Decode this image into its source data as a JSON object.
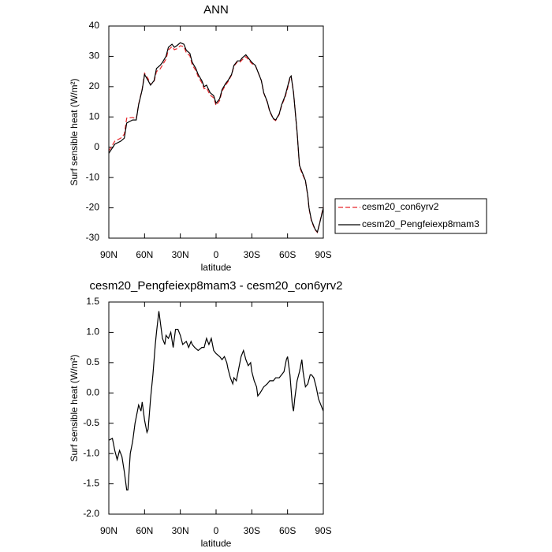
{
  "chart_data": [
    {
      "type": "line",
      "title": "ANN",
      "x_label": "latitude",
      "y_label": "Surf sensible heat (W/m²)",
      "x": [
        90,
        85,
        80,
        77,
        75,
        70,
        67,
        65,
        62,
        60,
        57,
        55,
        52,
        50,
        47,
        45,
        42,
        40,
        37,
        35,
        33,
        30,
        27,
        25,
        22,
        20,
        17,
        15,
        12,
        10,
        8,
        5,
        2,
        0,
        -3,
        -5,
        -8,
        -10,
        -13,
        -15,
        -18,
        -20,
        -22,
        -25,
        -28,
        -30,
        -33,
        -35,
        -38,
        -40,
        -43,
        -45,
        -48,
        -50,
        -53,
        -55,
        -58,
        -60,
        -62,
        -63,
        -65,
        -68,
        -70,
        -72,
        -75,
        -77,
        -78,
        -80,
        -83,
        -85,
        -87,
        -90
      ],
      "series": [
        {
          "name": "cesm20_con6yrv2",
          "color": "#e8262b",
          "dashed": true,
          "values": [
            -1.2,
            2,
            3,
            4.3,
            9.6,
            9.8,
            9.4,
            14.2,
            19.2,
            24.4,
            22.6,
            20.6,
            21.7,
            25,
            25.8,
            27.1,
            29.1,
            32.1,
            33.2,
            32.2,
            32.5,
            33.5,
            33.2,
            31.2,
            30.2,
            27.2,
            25.3,
            23.3,
            21.3,
            19.3,
            19.6,
            17.2,
            16.3,
            13.8,
            15.4,
            18.5,
            20.5,
            21.6,
            23.8,
            26.8,
            28.2,
            28.1,
            28.9,
            29.9,
            28.5,
            27.6,
            26.9,
            25,
            22,
            17.9,
            14.8,
            11.8,
            9.3,
            8.8,
            10.8,
            13.7,
            16.6,
            19.4,
            22.7,
            23.3,
            18.3,
            4.8,
            -6.4,
            -8.5,
            -11.1,
            -16.2,
            -20.3,
            -24.3,
            -27.2,
            -28.1,
            -24.8,
            -19.7
          ]
        },
        {
          "name": "cesm20_Pengfeiexp8mam3",
          "color": "#000000",
          "dashed": false,
          "values": [
            -2,
            1,
            2,
            3,
            8,
            9,
            9,
            14,
            19,
            24,
            22,
            20.5,
            22,
            26,
            27,
            28,
            30,
            33,
            34,
            33,
            33.5,
            34.5,
            34,
            32,
            31,
            28,
            26,
            24,
            22,
            20,
            20.5,
            18,
            17,
            14.5,
            16,
            19,
            21,
            22,
            24,
            27,
            28.5,
            28.5,
            29.5,
            30.5,
            29,
            28,
            27,
            25,
            22,
            18,
            15,
            12,
            9.5,
            9,
            11,
            14,
            17,
            20,
            23,
            23.5,
            18,
            5,
            -6,
            -8,
            -11,
            -16,
            -20,
            -24,
            -27,
            -28,
            -25,
            -20
          ]
        }
      ],
      "xlim": [
        90,
        -90
      ],
      "xticks": [
        {
          "value": 90,
          "label": "90N"
        },
        {
          "value": 60,
          "label": "60N"
        },
        {
          "value": 30,
          "label": "30N"
        },
        0,
        {
          "value": -30,
          "label": "30S"
        },
        {
          "value": -60,
          "label": "60S"
        },
        {
          "value": -90,
          "label": "90S"
        }
      ],
      "ylim": [
        -30,
        40
      ],
      "yticks": [
        40,
        30,
        20,
        10,
        0,
        -10,
        -20,
        -30
      ],
      "legend": "right"
    },
    {
      "type": "line",
      "title": "cesm20_Pengfeiexp8mam3 - cesm20_con6yrv2",
      "x_label": "latitude",
      "y_label": "Surf sensible heat (W/m²)",
      "x": [
        90,
        87,
        85,
        83,
        81,
        79,
        77,
        75,
        74,
        72,
        70,
        68,
        66,
        65,
        63,
        62,
        60,
        58,
        57,
        55,
        53,
        51,
        50,
        48,
        47,
        45,
        43,
        42,
        40,
        38,
        36,
        34,
        32,
        30,
        28,
        25,
        23,
        21,
        20,
        18,
        15,
        12,
        10,
        8,
        6,
        4,
        2,
        0,
        -3,
        -5,
        -7,
        -9,
        -10,
        -12,
        -14,
        -15,
        -17,
        -19,
        -21,
        -23,
        -25,
        -27,
        -29,
        -30,
        -32,
        -34,
        -35,
        -37,
        -40,
        -43,
        -45,
        -48,
        -50,
        -53,
        -55,
        -57,
        -59,
        -60,
        -62,
        -64,
        -65,
        -66,
        -68,
        -70,
        -72,
        -73,
        -75,
        -77,
        -79,
        -80,
        -82,
        -84,
        -86,
        -88,
        -90
      ],
      "values": [
        -0.78,
        -0.75,
        -0.95,
        -1.1,
        -0.95,
        -1.05,
        -1.3,
        -1.6,
        -1.6,
        -1.0,
        -0.8,
        -0.5,
        -0.3,
        -0.2,
        -0.3,
        -0.15,
        -0.45,
        -0.65,
        -0.6,
        -0.1,
        0.3,
        0.8,
        1.0,
        1.35,
        1.2,
        0.9,
        0.8,
        0.95,
        0.9,
        1.0,
        0.75,
        1.05,
        1.05,
        0.95,
        0.8,
        0.85,
        0.75,
        0.85,
        0.8,
        0.75,
        0.7,
        0.75,
        0.75,
        0.9,
        0.8,
        0.9,
        0.7,
        0.65,
        0.6,
        0.55,
        0.6,
        0.5,
        0.4,
        0.25,
        0.15,
        0.25,
        0.2,
        0.4,
        0.6,
        0.7,
        0.55,
        0.45,
        0.5,
        0.35,
        0.2,
        0.1,
        -0.05,
        0.0,
        0.1,
        0.15,
        0.2,
        0.2,
        0.25,
        0.25,
        0.3,
        0.35,
        0.55,
        0.6,
        0.3,
        -0.2,
        -0.3,
        -0.1,
        0.2,
        0.35,
        0.55,
        0.35,
        0.1,
        0.15,
        0.3,
        0.3,
        0.25,
        0.1,
        -0.1,
        -0.2,
        -0.3
      ],
      "color": "#000000",
      "xlim": [
        90,
        -90
      ],
      "xticks": [
        {
          "value": 90,
          "label": "90N"
        },
        {
          "value": 60,
          "label": "60N"
        },
        {
          "value": 30,
          "label": "30N"
        },
        0,
        {
          "value": -30,
          "label": "30S"
        },
        {
          "value": -60,
          "label": "60S"
        },
        {
          "value": -90,
          "label": "90S"
        }
      ],
      "ylim": [
        -2,
        1.5
      ],
      "yticks": [
        1.5,
        {
          "value": 1,
          "label": "1.0"
        },
        0.5,
        {
          "value": 0,
          "label": "0.0"
        },
        -0.5,
        {
          "value": -1,
          "label": "-1.0"
        },
        -1.5,
        {
          "value": -2,
          "label": "-2.0"
        }
      ]
    }
  ]
}
